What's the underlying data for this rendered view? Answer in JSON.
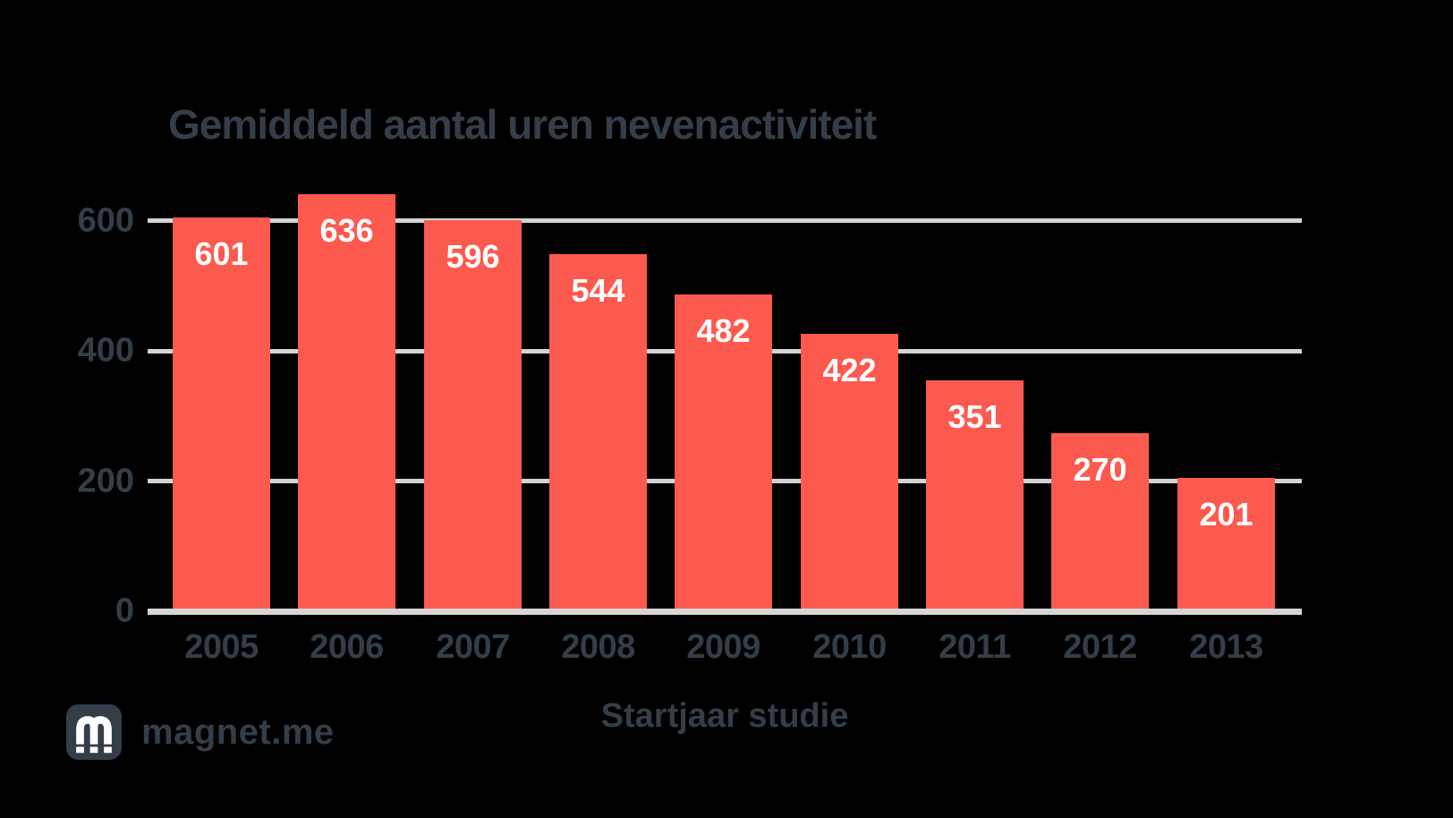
{
  "title": "Gemiddeld aantal uren nevenactiviteit",
  "chart_data": {
    "type": "bar",
    "title": "Gemiddeld aantal uren nevenactiviteit",
    "categories": [
      "2005",
      "2006",
      "2007",
      "2008",
      "2009",
      "2010",
      "2011",
      "2012",
      "2013"
    ],
    "values": [
      601,
      636,
      596,
      544,
      482,
      422,
      351,
      270,
      201
    ],
    "xlabel": "Startjaar studie",
    "ylabel": "",
    "yticks": [
      0,
      200,
      400,
      600
    ],
    "ylim": [
      0,
      650
    ],
    "grid": true,
    "legend": "none",
    "bar_color": "#fd5a4f",
    "value_label_color": "#ffffff",
    "axis_text_color": "#333e49",
    "gridline_color": "#d3d3d3",
    "background_color": "#000000"
  },
  "branding": {
    "logo_text": "magnet.me",
    "logo_icon": "magnet-m-icon"
  }
}
